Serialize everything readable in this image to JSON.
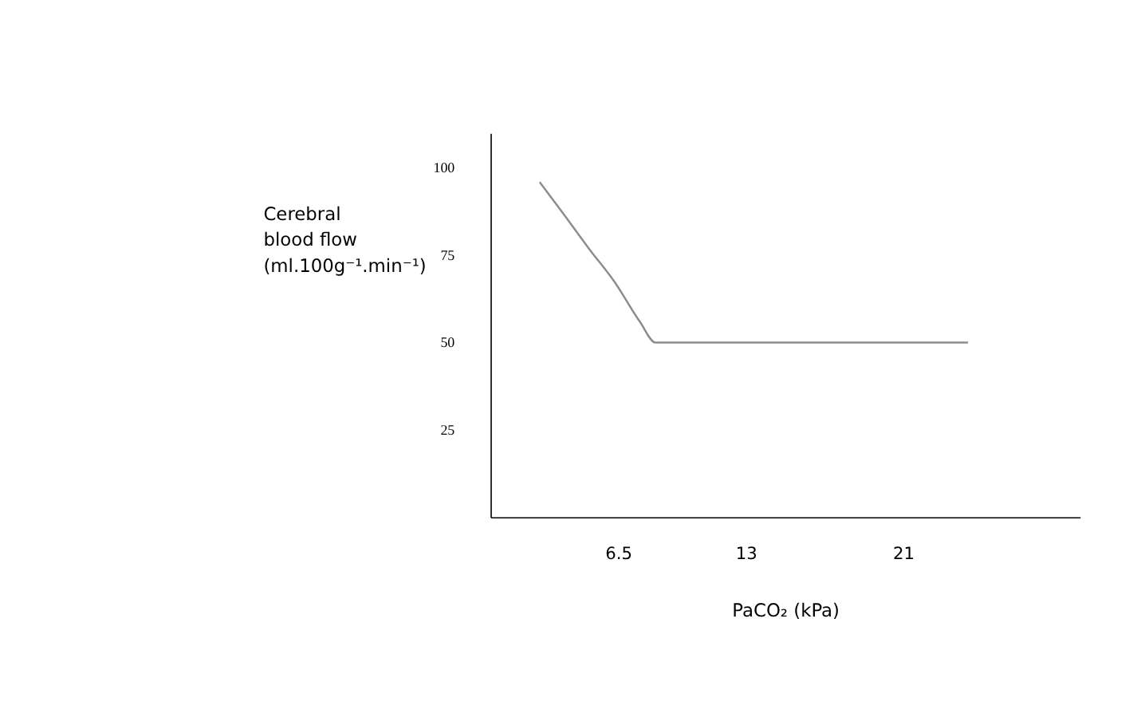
{
  "chart_data": {
    "type": "line",
    "xlabel": "PaCO₂ (kPa)",
    "ylabel": "Cerebral blood flow (ml.100g⁻¹.min⁻¹)",
    "x": [
      2.5,
      3.7,
      5.0,
      6.3,
      7.6,
      8.4,
      24.3
    ],
    "series": [
      {
        "color": "#8c8c8c",
        "values": [
          96,
          87,
          77,
          67.5,
          56,
          50,
          50
        ]
      }
    ],
    "xlim": [
      0,
      30
    ],
    "xticks": [
      6.5,
      13,
      21
    ],
    "ylim": [
      0,
      110
    ],
    "yticks": [
      25,
      50,
      75,
      100
    ],
    "grid": false,
    "marker": "none",
    "line_style": "solid"
  }
}
